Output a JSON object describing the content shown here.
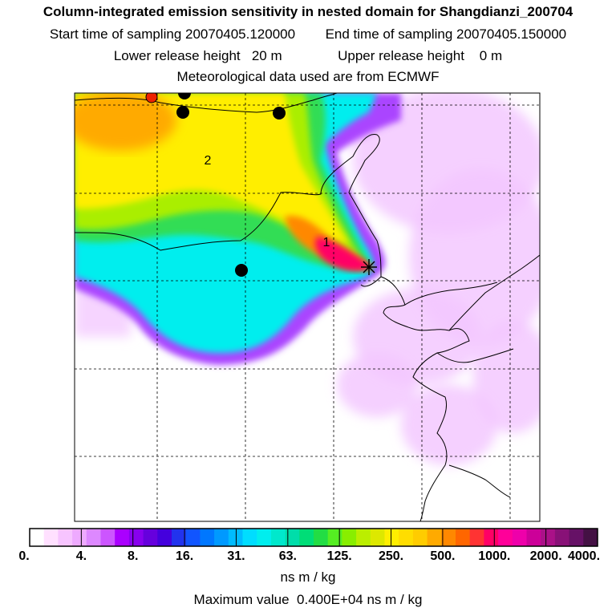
{
  "header": {
    "title": "Column-integrated emission sensitivity in nested domain for Shangdianzi_200704",
    "start_label": "Start time of sampling 20070405.120000",
    "end_label": "End time of sampling 20070405.150000",
    "lower_label": "Lower release height   20 m",
    "upper_label": "Upper release height    0 m",
    "met_label": "Meteorological data used are from ECMWF"
  },
  "map": {
    "cluster_labels": [
      "1",
      "2"
    ],
    "release_marker": "star",
    "colors": {
      "pink": "#ff66cc",
      "orange": "#ff9a00",
      "yellow": "#ffee00",
      "green": "#22dd66",
      "cyan": "#00eeee",
      "magenta": "#ff00cc",
      "violet": "#e8a0ff",
      "station_black": "#000000",
      "station_red": "#ee2200"
    }
  },
  "colorbar": {
    "tick_labels": [
      "0.",
      "4.",
      "8.",
      "16.",
      "31.",
      "63.",
      "125.",
      "250.",
      "500.",
      "1000.",
      "2000.",
      "4000."
    ],
    "colors": [
      "#ffffff",
      "#ffe0ff",
      "#f7c4ff",
      "#eeaaff",
      "#dd88ff",
      "#cc55ff",
      "#aa00ff",
      "#8800ee",
      "#6600dd",
      "#4400dd",
      "#2233ee",
      "#1155ff",
      "#0077ff",
      "#0099ff",
      "#00bbff",
      "#00ddff",
      "#00eeee",
      "#00e8cc",
      "#00ddaa",
      "#00dd77",
      "#22dd44",
      "#55ee22",
      "#88ee00",
      "#bbee00",
      "#dde800",
      "#ffee00",
      "#ffdd00",
      "#ffcc00",
      "#ffaa00",
      "#ff8800",
      "#ff6600",
      "#ff3333",
      "#ff0066",
      "#ff0099",
      "#ee00aa",
      "#cc0099",
      "#aa1188",
      "#881177",
      "#661166",
      "#441144"
    ],
    "units": "ns m / kg",
    "max_value": "Maximum value  0.400E+04 ns m / kg"
  }
}
